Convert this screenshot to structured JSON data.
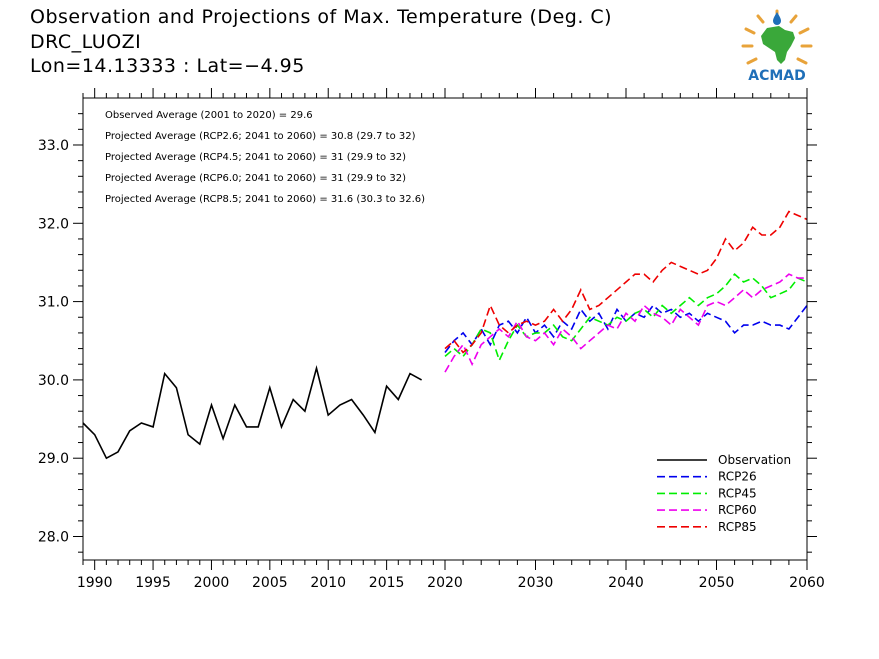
{
  "titles": {
    "line1": "Observation and Projections of Max. Temperature (Deg. C)",
    "line2": "DRC_LUOZI",
    "line3": "Lon=14.13333 : Lat=−4.95"
  },
  "logo": {
    "text": "ACMAD",
    "icon": "africa-sun-logo-icon",
    "colors": {
      "africa": "#3aa83a",
      "rays": "#e8a33a",
      "text": "#1f6fb8"
    }
  },
  "annotations": [
    "Observed Average (2001 to 2020) = 29.6",
    "Projected Average (RCP2.6; 2041 to 2060) = 30.8 (29.7 to 32)",
    "Projected Average (RCP4.5; 2041 to 2060) = 31 (29.9 to 32)",
    "Projected Average (RCP6.0; 2041 to 2060) = 31 (29.9 to 32)",
    "Projected Average (RCP8.5; 2041 to 2060) = 31.6 (30.3 to 32.6)"
  ],
  "chart_data": {
    "type": "line",
    "xlim": [
      1989,
      2060
    ],
    "ylim": [
      27.7,
      33.6
    ],
    "x_ticks": [
      1990,
      1995,
      2000,
      2005,
      2010,
      2015,
      2020,
      2030,
      2040,
      2050,
      2060
    ],
    "y_ticks": [
      "28.0",
      "29.0",
      "30.0",
      "31.0",
      "32.0",
      "33.0"
    ],
    "grid": false,
    "legend_position": "bottom-right",
    "series": [
      {
        "name": "Observation",
        "color": "#000000",
        "dashed": false,
        "x": [
          1989,
          1990,
          1991,
          1992,
          1993,
          1994,
          1995,
          1996,
          1997,
          1998,
          1999,
          2000,
          2001,
          2002,
          2003,
          2004,
          2005,
          2006,
          2007,
          2008,
          2009,
          2010,
          2011,
          2012,
          2013,
          2014,
          2015,
          2016,
          2017,
          2018,
          2019
        ],
        "y": [
          29.45,
          29.3,
          29.0,
          29.08,
          29.35,
          29.45,
          29.4,
          30.08,
          29.9,
          29.3,
          29.18,
          29.68,
          29.25,
          29.68,
          29.4,
          29.4,
          29.9,
          29.4,
          29.75,
          29.6,
          30.15,
          29.55,
          29.68,
          29.75,
          29.55,
          29.33,
          29.92,
          29.75,
          30.08,
          30.0,
          null
        ]
      },
      {
        "name": "RCP26",
        "color": "#0000ee",
        "dashed": true,
        "x": [
          2020,
          2021,
          2022,
          2023,
          2024,
          2025,
          2026,
          2027,
          2028,
          2029,
          2030,
          2031,
          2032,
          2033,
          2034,
          2035,
          2036,
          2037,
          2038,
          2039,
          2040,
          2041,
          2042,
          2043,
          2044,
          2045,
          2046,
          2047,
          2048,
          2049,
          2050,
          2051,
          2052,
          2053,
          2054,
          2055,
          2056,
          2057,
          2058,
          2059,
          2060
        ],
        "y": [
          30.35,
          30.5,
          30.6,
          30.45,
          30.65,
          30.45,
          30.7,
          30.75,
          30.6,
          30.8,
          30.6,
          30.7,
          30.55,
          30.75,
          30.65,
          30.9,
          30.75,
          30.85,
          30.65,
          30.9,
          30.75,
          30.85,
          30.8,
          30.95,
          30.85,
          30.9,
          30.8,
          30.85,
          30.75,
          30.85,
          30.8,
          30.75,
          30.6,
          30.7,
          30.7,
          30.75,
          30.7,
          30.7,
          30.65,
          30.8,
          30.95
        ]
      },
      {
        "name": "RCP45",
        "color": "#00ee00",
        "dashed": true,
        "x": [
          2020,
          2021,
          2022,
          2023,
          2024,
          2025,
          2026,
          2027,
          2028,
          2029,
          2030,
          2031,
          2032,
          2033,
          2034,
          2035,
          2036,
          2037,
          2038,
          2039,
          2040,
          2041,
          2042,
          2043,
          2044,
          2045,
          2046,
          2047,
          2048,
          2049,
          2050,
          2051,
          2052,
          2053,
          2054,
          2055,
          2056,
          2057,
          2058,
          2059,
          2060
        ],
        "y": [
          30.3,
          30.4,
          30.3,
          30.45,
          30.65,
          30.6,
          30.25,
          30.5,
          30.7,
          30.55,
          30.6,
          30.6,
          30.7,
          30.55,
          30.5,
          30.65,
          30.8,
          30.75,
          30.7,
          30.8,
          30.75,
          30.85,
          30.9,
          30.8,
          30.95,
          30.85,
          30.95,
          31.05,
          30.95,
          31.05,
          31.1,
          31.2,
          31.35,
          31.25,
          31.3,
          31.2,
          31.05,
          31.1,
          31.15,
          31.3,
          31.25
        ]
      },
      {
        "name": "RCP60",
        "color": "#ee00ee",
        "dashed": true,
        "x": [
          2020,
          2021,
          2022,
          2023,
          2024,
          2025,
          2026,
          2027,
          2028,
          2029,
          2030,
          2031,
          2032,
          2033,
          2034,
          2035,
          2036,
          2037,
          2038,
          2039,
          2040,
          2041,
          2042,
          2043,
          2044,
          2045,
          2046,
          2047,
          2048,
          2049,
          2050,
          2051,
          2052,
          2053,
          2054,
          2055,
          2056,
          2057,
          2058,
          2059,
          2060
        ],
        "y": [
          30.1,
          30.3,
          30.45,
          30.2,
          30.45,
          30.55,
          30.65,
          30.55,
          30.75,
          30.55,
          30.5,
          30.6,
          30.45,
          30.65,
          30.55,
          30.4,
          30.5,
          30.6,
          30.7,
          30.65,
          30.85,
          30.75,
          30.95,
          30.85,
          30.8,
          30.7,
          30.9,
          30.8,
          30.7,
          30.95,
          31.0,
          30.95,
          31.05,
          31.15,
          31.05,
          31.15,
          31.2,
          31.25,
          31.35,
          31.3,
          31.3
        ]
      },
      {
        "name": "RCP85",
        "color": "#ee0000",
        "dashed": true,
        "x": [
          2020,
          2021,
          2022,
          2023,
          2024,
          2025,
          2026,
          2027,
          2028,
          2029,
          2030,
          2031,
          2032,
          2033,
          2034,
          2035,
          2036,
          2037,
          2038,
          2039,
          2040,
          2041,
          2042,
          2043,
          2044,
          2045,
          2046,
          2047,
          2048,
          2049,
          2050,
          2051,
          2052,
          2053,
          2054,
          2055,
          2056,
          2057,
          2058,
          2059,
          2060
        ],
        "y": [
          30.4,
          30.5,
          30.35,
          30.45,
          30.6,
          30.95,
          30.7,
          30.6,
          30.7,
          30.75,
          30.7,
          30.75,
          30.9,
          30.75,
          30.9,
          31.15,
          30.9,
          30.95,
          31.05,
          31.15,
          31.25,
          31.35,
          31.35,
          31.25,
          31.4,
          31.5,
          31.45,
          31.4,
          31.35,
          31.4,
          31.55,
          31.8,
          31.65,
          31.75,
          31.95,
          31.85,
          31.85,
          31.95,
          32.15,
          32.1,
          32.05
        ]
      }
    ]
  }
}
